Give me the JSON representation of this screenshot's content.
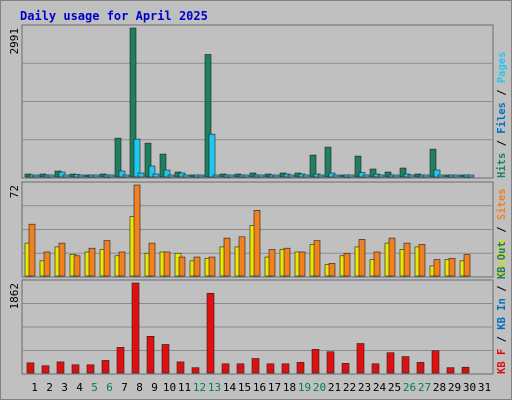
{
  "title": "Daily usage for April 2025",
  "colors": {
    "background": "#c0c0c0",
    "title": "#0000cc",
    "hits": "#1f7f5f",
    "files": "#1fc8f0",
    "pages": "#1fc8f0",
    "visits": "#f0f000",
    "sites": "#f08020",
    "kbytes": "#e01010",
    "grid": "#888888",
    "weekend_label": "#00804f"
  },
  "chart_data": [
    {
      "type": "bar",
      "panel": "hits-files-pages",
      "ymax_label": "2991",
      "ylim": [
        0,
        2991
      ],
      "legend": [
        {
          "label": "Hits",
          "color": "#1f7f5f"
        },
        {
          "label": "Files",
          "color": "#0070c0"
        },
        {
          "label": "Pages",
          "color": "#1fc8f0"
        }
      ],
      "categories": [
        "1",
        "2",
        "3",
        "4",
        "5",
        "6",
        "7",
        "8",
        "9",
        "10",
        "11",
        "12",
        "13",
        "14",
        "15",
        "16",
        "17",
        "18",
        "19",
        "20",
        "21",
        "22",
        "23",
        "24",
        "25",
        "26",
        "27",
        "28",
        "29",
        "30",
        "31"
      ],
      "series": [
        {
          "name": "Hits",
          "values": [
            60,
            60,
            120,
            60,
            40,
            60,
            780,
            2991,
            680,
            460,
            100,
            40,
            2460,
            60,
            60,
            80,
            60,
            80,
            80,
            440,
            600,
            40,
            420,
            160,
            100,
            180,
            60,
            560,
            40,
            40,
            0
          ]
        },
        {
          "name": "Files",
          "values": [
            40,
            40,
            100,
            50,
            30,
            40,
            120,
            760,
            220,
            140,
            80,
            20,
            860,
            40,
            40,
            40,
            40,
            60,
            60,
            60,
            80,
            30,
            90,
            60,
            40,
            60,
            40,
            140,
            30,
            30,
            0
          ]
        },
        {
          "name": "Pages",
          "values": [
            20,
            20,
            40,
            20,
            10,
            20,
            40,
            80,
            60,
            40,
            20,
            10,
            40,
            20,
            20,
            30,
            20,
            20,
            20,
            20,
            20,
            10,
            20,
            20,
            20,
            20,
            20,
            20,
            10,
            10,
            0
          ]
        }
      ]
    },
    {
      "type": "bar",
      "panel": "visits-sites",
      "ymax_label": "72",
      "ylim": [
        0,
        72
      ],
      "legend": [
        {
          "label": "Visits",
          "color": "#e0e000"
        },
        {
          "label": "Sites",
          "color": "#f08020"
        }
      ],
      "categories": [
        "1",
        "2",
        "3",
        "4",
        "5",
        "6",
        "7",
        "8",
        "9",
        "10",
        "11",
        "12",
        "13",
        "14",
        "15",
        "16",
        "17",
        "18",
        "19",
        "20",
        "21",
        "22",
        "23",
        "24",
        "25",
        "26",
        "27",
        "28",
        "29",
        "30",
        "31"
      ],
      "series": [
        {
          "name": "Visits",
          "values": [
            26,
            12,
            23,
            17,
            19,
            21,
            16,
            47,
            18,
            19,
            18,
            12,
            14,
            23,
            23,
            40,
            15,
            21,
            19,
            25,
            9,
            16,
            23,
            13,
            26,
            21,
            23,
            8,
            13,
            12,
            0
          ]
        },
        {
          "name": "Sites",
          "values": [
            41,
            19,
            26,
            16,
            22,
            28,
            19,
            72,
            26,
            19,
            15,
            15,
            15,
            30,
            31,
            52,
            21,
            22,
            19,
            28,
            10,
            18,
            29,
            19,
            30,
            26,
            25,
            13,
            14,
            17,
            0
          ]
        }
      ]
    },
    {
      "type": "bar",
      "panel": "kbytes",
      "ymax_label": "1862",
      "ylim": [
        0,
        1862
      ],
      "legend": [
        {
          "label": "KB F",
          "color": "#e01010"
        },
        {
          "label": "KB In",
          "color": "#0070c0"
        },
        {
          "label": "KB Out",
          "color": "#1f7f5f"
        }
      ],
      "categories": [
        "1",
        "2",
        "3",
        "4",
        "5",
        "6",
        "7",
        "8",
        "9",
        "10",
        "11",
        "12",
        "13",
        "14",
        "15",
        "16",
        "17",
        "18",
        "19",
        "20",
        "21",
        "22",
        "23",
        "24",
        "25",
        "26",
        "27",
        "28",
        "29",
        "30",
        "31"
      ],
      "series": [
        {
          "name": "KB F",
          "values": [
            210,
            150,
            230,
            170,
            170,
            260,
            530,
            1862,
            760,
            590,
            230,
            110,
            1650,
            190,
            190,
            300,
            190,
            190,
            220,
            490,
            440,
            200,
            610,
            190,
            420,
            340,
            220,
            460,
            110,
            120,
            0
          ]
        }
      ]
    }
  ],
  "x_labels": [
    "1",
    "2",
    "3",
    "4",
    "5",
    "6",
    "7",
    "8",
    "9",
    "10",
    "11",
    "12",
    "13",
    "14",
    "15",
    "16",
    "17",
    "18",
    "19",
    "20",
    "21",
    "22",
    "23",
    "24",
    "25",
    "26",
    "27",
    "28",
    "29",
    "30",
    "31"
  ],
  "weekend_days": [
    "5",
    "6",
    "12",
    "13",
    "19",
    "20",
    "26",
    "27"
  ]
}
